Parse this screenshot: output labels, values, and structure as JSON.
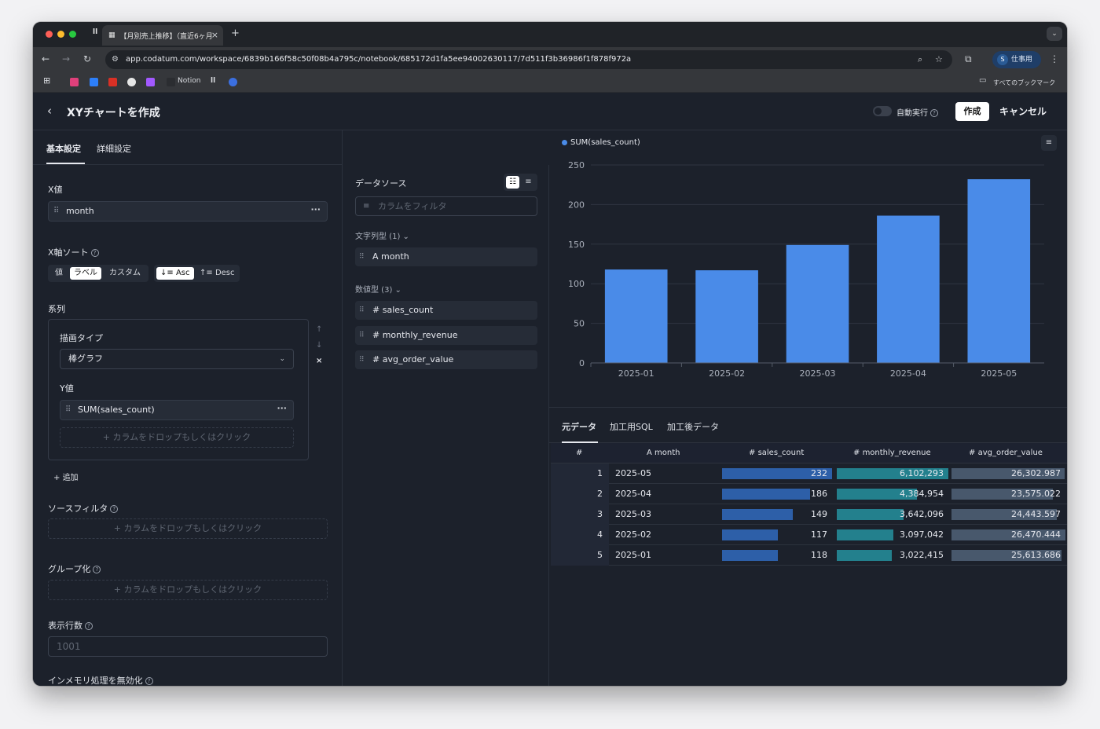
{
  "browser": {
    "tab_title": "【月別売上推移】（直近6ヶ月",
    "tab_favicon": "ll",
    "url": "app.codatum.com/workspace/6839b166f58c50f08b4a795c/notebook/685172d1fa5ee94002630117/7d511f3b36986f1f878f972a",
    "profile_initial": "S",
    "profile_label": "仕事用",
    "bookmarks": [
      "Notion"
    ],
    "bookmarks_all": "すべてのブックマーク"
  },
  "header": {
    "title": "XYチャートを作成",
    "auto_run_label": "自動実行",
    "create_label": "作成",
    "cancel_label": "キャンセル"
  },
  "left": {
    "tab_basic": "基本設定",
    "tab_detail": "詳細設定",
    "x_value_label": "X値",
    "x_value_field": "month",
    "x_sort_label": "X軸ソート",
    "sort_mode_options": [
      "値",
      "ラベル",
      "カスタム"
    ],
    "sort_mode_selected": "ラベル",
    "sort_dir_options": [
      "Asc",
      "Desc"
    ],
    "sort_dir_selected": "Asc",
    "series_label": "系列",
    "draw_type_label": "描画タイプ",
    "draw_type_value": "棒グラフ",
    "y_value_label": "Y値",
    "y_value_field": "SUM(sales_count)",
    "drop_placeholder": "カラムをドロップもしくはクリック",
    "add_label": "追加",
    "source_filter_label": "ソースフィルタ",
    "group_label": "グループ化",
    "row_count_label": "表示行数",
    "row_count_placeholder": "1001",
    "inmemory_label": "インメモリ処理を無効化"
  },
  "middle": {
    "datasource_label": "データソース",
    "filter_placeholder": "カラムをフィルタ",
    "string_group": "文字列型 (1)",
    "string_columns": [
      "month"
    ],
    "number_group": "数値型 (3)",
    "number_columns": [
      "sales_count",
      "monthly_revenue",
      "avg_order_value"
    ]
  },
  "chart_data": {
    "type": "bar",
    "categories": [
      "2025-01",
      "2025-02",
      "2025-03",
      "2025-04",
      "2025-05"
    ],
    "series": [
      {
        "name": "SUM(sales_count)",
        "values": [
          118,
          117,
          149,
          186,
          232
        ],
        "color": "#4a8be8"
      }
    ],
    "ylim": [
      0,
      250
    ],
    "yticks": [
      0,
      50,
      100,
      150,
      200,
      250
    ],
    "grid": true,
    "legend": "top-left"
  },
  "result": {
    "tabs": [
      "元データ",
      "加工用SQL",
      "加工後データ"
    ],
    "active_tab": "元データ",
    "columns": [
      "#",
      "month",
      "sales_count",
      "monthly_revenue",
      "avg_order_value"
    ],
    "rows": [
      {
        "n": "1",
        "month": "2025-05",
        "sales_count": "232",
        "monthly_revenue": "6,102,293",
        "avg_order_value": "26,302.987"
      },
      {
        "n": "2",
        "month": "2025-04",
        "sales_count": "186",
        "monthly_revenue": "4,384,954",
        "avg_order_value": "23,575.022"
      },
      {
        "n": "3",
        "month": "2025-03",
        "sales_count": "149",
        "monthly_revenue": "3,642,096",
        "avg_order_value": "24,443.597"
      },
      {
        "n": "4",
        "month": "2025-02",
        "sales_count": "117",
        "monthly_revenue": "3,097,042",
        "avg_order_value": "26,470.444"
      },
      {
        "n": "5",
        "month": "2025-01",
        "sales_count": "118",
        "monthly_revenue": "3,022,415",
        "avg_order_value": "25,613.686"
      }
    ],
    "bar_colors": {
      "sales_count": "#2d5fa8",
      "monthly_revenue": "#23808d",
      "avg_order_value": "#48586c"
    }
  }
}
